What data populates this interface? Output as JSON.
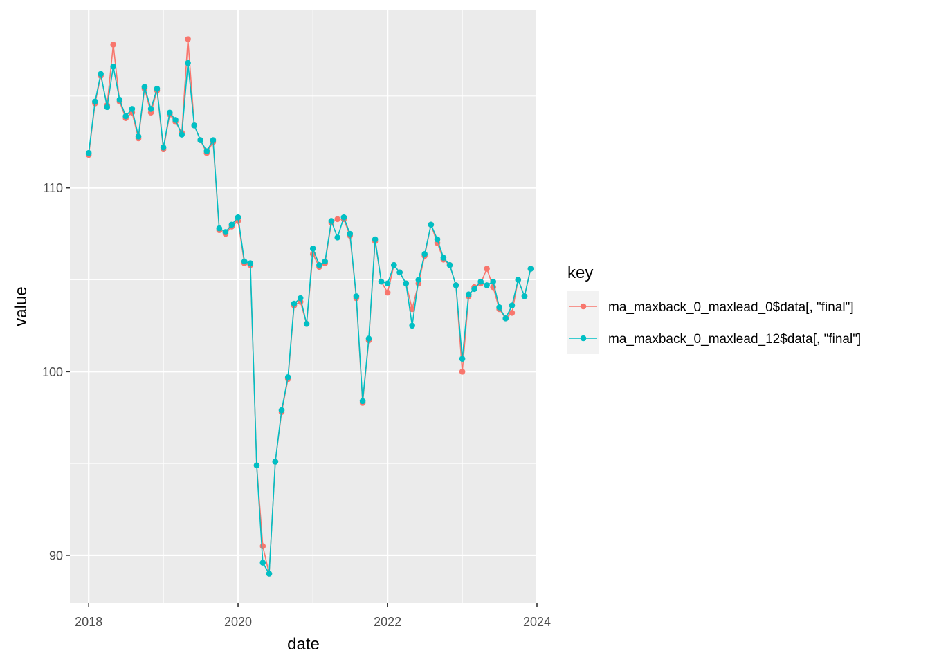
{
  "chart_data": {
    "type": "line",
    "xlabel": "date",
    "ylabel": "value",
    "x_ticks": [
      "2018",
      "2020",
      "2022",
      "2024"
    ],
    "y_ticks": [
      90,
      100,
      110
    ],
    "x_range": [
      "2017-10-01",
      "2024-01-01"
    ],
    "ylim": [
      87.4,
      119.7
    ],
    "grid": true,
    "background": "#EBEBEB",
    "legend": {
      "title": "key",
      "placement": "right"
    },
    "x": [
      "2018-01-01",
      "2018-02-01",
      "2018-03-01",
      "2018-04-01",
      "2018-05-01",
      "2018-06-01",
      "2018-07-01",
      "2018-08-01",
      "2018-09-01",
      "2018-10-01",
      "2018-11-01",
      "2018-12-01",
      "2019-01-01",
      "2019-02-01",
      "2019-03-01",
      "2019-04-01",
      "2019-05-01",
      "2019-06-01",
      "2019-07-01",
      "2019-08-01",
      "2019-09-01",
      "2019-10-01",
      "2019-11-01",
      "2019-12-01",
      "2020-01-01",
      "2020-02-01",
      "2020-03-01",
      "2020-04-01",
      "2020-05-01",
      "2020-06-01",
      "2020-07-01",
      "2020-08-01",
      "2020-09-01",
      "2020-10-01",
      "2020-11-01",
      "2020-12-01",
      "2021-01-01",
      "2021-02-01",
      "2021-03-01",
      "2021-04-01",
      "2021-05-01",
      "2021-06-01",
      "2021-07-01",
      "2021-08-01",
      "2021-09-01",
      "2021-10-01",
      "2021-11-01",
      "2021-12-01",
      "2022-01-01",
      "2022-02-01",
      "2022-03-01",
      "2022-04-01",
      "2022-05-01",
      "2022-06-01",
      "2022-07-01",
      "2022-08-01",
      "2022-09-01",
      "2022-10-01",
      "2022-11-01",
      "2022-12-01",
      "2023-01-01",
      "2023-02-01",
      "2023-03-01",
      "2023-04-01",
      "2023-05-01",
      "2023-06-01",
      "2023-07-01",
      "2023-08-01",
      "2023-09-01",
      "2023-10-01",
      "2023-11-01",
      "2023-12-01"
    ],
    "series": [
      {
        "name": "ma_maxback_0_maxlead_0$data[, \"final\"]",
        "color": "#F8766D",
        "values": [
          111.8,
          114.6,
          116.1,
          114.5,
          117.8,
          114.7,
          113.8,
          114.1,
          112.7,
          115.4,
          114.1,
          115.3,
          112.1,
          114.0,
          113.6,
          113.0,
          118.1,
          113.4,
          112.6,
          111.9,
          112.5,
          107.7,
          107.5,
          107.9,
          108.2,
          105.9,
          105.8,
          94.9,
          90.5,
          89.0,
          95.1,
          97.8,
          99.6,
          103.6,
          103.8,
          102.6,
          106.4,
          105.7,
          105.9,
          108.1,
          108.3,
          108.3,
          107.4,
          104.0,
          98.3,
          101.7,
          107.1,
          104.9,
          104.3,
          105.8,
          105.4,
          104.8,
          103.4,
          104.8,
          106.3,
          108.0,
          107.0,
          106.1,
          105.8,
          104.7,
          100.0,
          104.1,
          104.6,
          104.8,
          105.6,
          104.6,
          103.4,
          102.9,
          103.2,
          105.0,
          104.1,
          105.6
        ]
      },
      {
        "name": "ma_maxback_0_maxlead_12$data[, \"final\"]",
        "color": "#00BFC4",
        "values": [
          111.9,
          114.7,
          116.2,
          114.4,
          116.6,
          114.8,
          113.9,
          114.3,
          112.8,
          115.5,
          114.3,
          115.4,
          112.2,
          114.1,
          113.7,
          112.9,
          116.8,
          113.4,
          112.6,
          112.0,
          112.6,
          107.8,
          107.6,
          108.0,
          108.4,
          106.0,
          105.9,
          94.9,
          89.6,
          89.0,
          95.1,
          97.9,
          99.7,
          103.7,
          104.0,
          102.6,
          106.7,
          105.8,
          106.0,
          108.2,
          107.3,
          108.4,
          107.5,
          104.1,
          98.4,
          101.8,
          107.2,
          104.9,
          104.8,
          105.8,
          105.4,
          104.8,
          102.5,
          105.0,
          106.4,
          108.0,
          107.2,
          106.2,
          105.8,
          104.7,
          100.7,
          104.2,
          104.5,
          104.9,
          104.7,
          104.9,
          103.5,
          102.9,
          103.6,
          105.0,
          104.1,
          105.6
        ]
      }
    ]
  }
}
